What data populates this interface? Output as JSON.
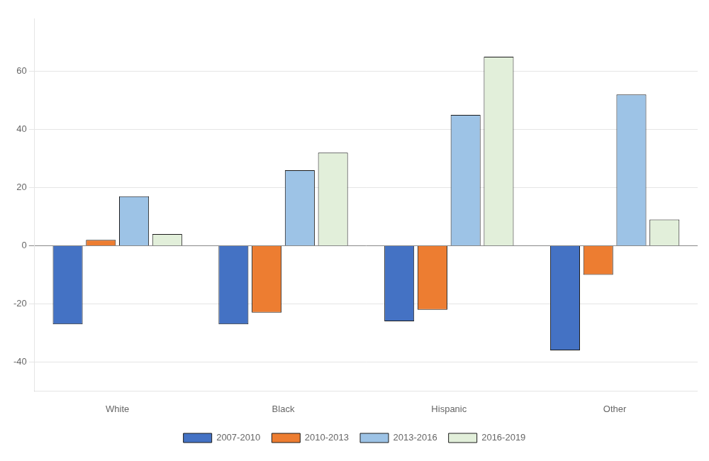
{
  "chart_data": {
    "type": "bar",
    "categories": [
      "White",
      "Black",
      "Hispanic",
      "Other"
    ],
    "series": [
      {
        "name": "2007-2010",
        "color": "#4472C4",
        "values": [
          -27,
          -27,
          -26,
          -36
        ]
      },
      {
        "name": "2010-2013",
        "color": "#ED7D31",
        "values": [
          2,
          -23,
          -22,
          -10
        ]
      },
      {
        "name": "2013-2016",
        "color": "#9DC3E6",
        "values": [
          17,
          26,
          45,
          52
        ]
      },
      {
        "name": "2016-2019",
        "color": "#E2EFDA",
        "values": [
          4,
          32,
          65,
          9
        ]
      }
    ],
    "ylim": [
      -50,
      78
    ],
    "yticks": [
      -40,
      -20,
      0,
      20,
      40,
      60
    ],
    "grid": true,
    "legend": "bottom"
  }
}
